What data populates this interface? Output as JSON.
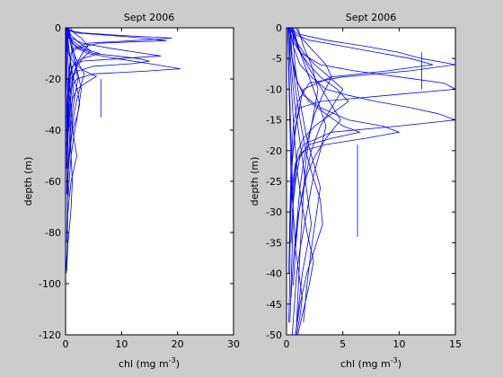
{
  "figure": {
    "background": "#cccccc"
  },
  "chart_data": [
    {
      "type": "line",
      "title": "Sept 2006",
      "xlabel": "chl (mg m",
      "xlabel_sup": "-3",
      "xlabel_close": ")",
      "ylabel": "depth (m)",
      "xlim": [
        0,
        30
      ],
      "ylim": [
        -120,
        0
      ],
      "xticks": [
        0,
        10,
        20,
        30
      ],
      "yticks": [
        0,
        -20,
        -40,
        -60,
        -80,
        -100,
        -120
      ],
      "grid": false,
      "line_color": "#0000ff",
      "series": [
        {
          "x": [
            0.2,
            0.5,
            2.0,
            8.0,
            14.0,
            18.0,
            6.0,
            2.0,
            1.0,
            0.8,
            0.6,
            0.5,
            0.4,
            0.3,
            0.3,
            0.2,
            0.2,
            0.2
          ],
          "y": [
            0,
            -1,
            -2,
            -3,
            -4,
            -5,
            -6,
            -8,
            -10,
            -15,
            -20,
            -25,
            -30,
            -35,
            -40,
            -45,
            -50,
            -55
          ]
        },
        {
          "x": [
            0.3,
            0.8,
            3.0,
            10.0,
            19.0,
            12.0,
            4.0,
            1.5,
            1.0,
            0.7,
            0.5,
            0.4,
            0.3,
            0.2
          ],
          "y": [
            0,
            -1,
            -2,
            -3,
            -4,
            -5,
            -6,
            -8,
            -10,
            -15,
            -20,
            -25,
            -30,
            -35
          ]
        },
        {
          "x": [
            0.2,
            0.4,
            1.0,
            3.0,
            8.0,
            14.0,
            17.0,
            10.0,
            3.0,
            1.2,
            0.8,
            0.5,
            0.4,
            0.3,
            0.3,
            0.2
          ],
          "y": [
            0,
            -2,
            -4,
            -6,
            -8,
            -10,
            -11,
            -12,
            -13,
            -15,
            -18,
            -22,
            -28,
            -35,
            -42,
            -50
          ]
        },
        {
          "x": [
            0.2,
            0.3,
            0.6,
            1.2,
            2.5,
            5.0,
            9.0,
            13.0,
            15.0,
            12.0,
            5.0,
            2.0,
            0.9,
            0.6,
            0.4,
            0.3
          ],
          "y": [
            0,
            -2,
            -4,
            -6,
            -8,
            -10,
            -11,
            -12,
            -13,
            -14,
            -15,
            -17,
            -20,
            -25,
            -32,
            -40
          ]
        },
        {
          "x": [
            0.3,
            0.5,
            1.0,
            2.0,
            4.0,
            9.0,
            15.0,
            20.5,
            14.0,
            5.0,
            2.0,
            1.0,
            0.7,
            0.5,
            0.4,
            0.3
          ],
          "y": [
            0,
            -2,
            -5,
            -8,
            -10,
            -12,
            -14,
            -16,
            -17,
            -18,
            -20,
            -23,
            -28,
            -35,
            -45,
            -55
          ]
        },
        {
          "x": [
            6.3,
            6.3,
            6.3,
            6.3
          ],
          "y": [
            -20,
            -25,
            -30,
            -35
          ]
        },
        {
          "x": [
            0.2,
            0.4,
            1.2,
            3.0,
            6.0,
            3.0,
            1.5,
            1.0,
            0.8,
            0.6,
            0.5,
            0.4,
            0.3,
            0.3,
            0.2
          ],
          "y": [
            0,
            -2,
            -5,
            -8,
            -10,
            -12,
            -14,
            -17,
            -20,
            -25,
            -30,
            -38,
            -46,
            -55,
            -65
          ]
        },
        {
          "x": [
            0.4,
            1.0,
            2.5,
            4.5,
            3.0,
            2.0,
            1.5,
            1.0,
            0.7,
            0.5,
            0.3,
            0.2
          ],
          "y": [
            0,
            -3,
            -6,
            -9,
            -12,
            -15,
            -18,
            -22,
            -28,
            -35,
            -45,
            -55
          ]
        },
        {
          "x": [
            0.2,
            0.3,
            0.5,
            1.5,
            3.5,
            5.5,
            4.0,
            2.0,
            1.2,
            0.8,
            0.5,
            0.3
          ],
          "y": [
            0,
            -5,
            -10,
            -14,
            -17,
            -19,
            -21,
            -24,
            -28,
            -33,
            -40,
            -48
          ]
        },
        {
          "x": [
            0.5,
            0.8,
            1.2,
            1.8,
            2.2,
            1.8,
            1.4,
            1.0,
            0.7,
            0.5,
            0.3
          ],
          "y": [
            0,
            -5,
            -10,
            -15,
            -20,
            -25,
            -30,
            -38,
            -45,
            -55,
            -65
          ]
        },
        {
          "x": [
            0.3,
            0.4,
            0.7,
            1.0,
            1.5,
            2.2,
            2.5,
            2.0,
            1.2,
            0.8,
            0.5,
            0.3
          ],
          "y": [
            0,
            -5,
            -10,
            -15,
            -20,
            -25,
            -30,
            -35,
            -40,
            -48,
            -55,
            -62
          ]
        },
        {
          "x": [
            0.2,
            0.3,
            0.5,
            0.7,
            0.9,
            1.2,
            1.6,
            2.0,
            1.5,
            1.0,
            0.6,
            0.3
          ],
          "y": [
            0,
            -8,
            -15,
            -22,
            -30,
            -38,
            -45,
            -50,
            -55,
            -60,
            -68,
            -75
          ]
        },
        {
          "x": [
            0.1,
            0.2,
            0.3,
            0.5,
            0.8,
            1.0,
            1.2,
            1.0,
            0.7,
            0.4,
            0.2
          ],
          "y": [
            0,
            -10,
            -20,
            -30,
            -40,
            -50,
            -60,
            -70,
            -78,
            -85,
            -95
          ]
        },
        {
          "x": [
            0.1,
            0.1,
            0.2,
            0.2,
            0.3,
            0.4,
            0.3,
            0.2,
            0.1
          ],
          "y": [
            0,
            -15,
            -30,
            -45,
            -60,
            -75,
            -85,
            -90,
            -96
          ]
        },
        {
          "x": [
            0.6,
            0.9,
            1.3,
            1.7,
            2.0,
            2.4,
            2.8,
            2.4,
            2.0,
            1.5,
            1.0,
            0.7,
            0.5
          ],
          "y": [
            0,
            -4,
            -8,
            -12,
            -16,
            -20,
            -24,
            -30,
            -36,
            -42,
            -50,
            -58,
            -66
          ]
        },
        {
          "x": [
            0.4,
            0.6,
            0.9,
            1.3,
            1.9,
            2.6,
            3.3,
            2.8,
            2.0,
            1.4,
            0.9,
            0.5,
            0.3
          ],
          "y": [
            0,
            -3,
            -6,
            -9,
            -12,
            -15,
            -18,
            -22,
            -28,
            -35,
            -45,
            -55,
            -70
          ]
        },
        {
          "x": [
            0.3,
            0.5,
            0.8,
            1.1,
            1.4,
            1.1,
            0.9,
            0.7,
            0.5,
            0.4,
            0.3,
            0.2
          ],
          "y": [
            0,
            -6,
            -12,
            -18,
            -24,
            -30,
            -36,
            -44,
            -52,
            -60,
            -72,
            -84
          ]
        },
        {
          "x": [
            0.8,
            1.5,
            2.8,
            4.0,
            3.0,
            2.2,
            1.6,
            1.2,
            0.9,
            0.6,
            0.4
          ],
          "y": [
            0,
            -2,
            -4,
            -7,
            -10,
            -13,
            -17,
            -22,
            -28,
            -36,
            -46
          ]
        }
      ]
    },
    {
      "type": "line",
      "title": "Sept 2006",
      "xlabel": "chl (mg m",
      "xlabel_sup": "-3",
      "xlabel_close": ")",
      "ylabel": "depth (m)",
      "xlim": [
        0,
        15
      ],
      "ylim": [
        -50,
        0
      ],
      "xticks": [
        0,
        5,
        10,
        15
      ],
      "yticks": [
        0,
        -5,
        -10,
        -15,
        -20,
        -25,
        -30,
        -35,
        -40,
        -45,
        -50
      ],
      "grid": false,
      "line_color": "#0000ff",
      "series": [
        {
          "x": [
            0.2,
            0.6,
            2.0,
            5.0,
            8.0,
            11.0,
            13.0,
            9.0,
            4.0,
            1.5,
            1.0,
            0.7,
            0.5,
            0.4,
            0.3,
            0.3,
            0.2
          ],
          "y": [
            0,
            -1,
            -2,
            -3,
            -4,
            -5,
            -6,
            -7,
            -8,
            -10,
            -14,
            -18,
            -22,
            -27,
            -32,
            -40,
            -48
          ]
        },
        {
          "x": [
            0.3,
            1.0,
            3.5,
            7.0,
            10.0,
            12.0,
            15.0,
            11.0,
            5.0,
            2.0,
            1.0,
            0.6,
            0.4,
            0.3,
            0.2
          ],
          "y": [
            0,
            -1,
            -2,
            -3,
            -4,
            -5,
            -6,
            -7,
            -8,
            -9,
            -12,
            -16,
            -22,
            -30,
            -40
          ]
        },
        {
          "x": [
            0.2,
            0.5,
            1.2,
            3.0,
            6.0,
            10.0,
            14.0,
            15.0,
            9.0,
            3.0,
            1.2,
            0.8,
            0.5,
            0.4,
            0.3
          ],
          "y": [
            0,
            -2,
            -4,
            -6,
            -7,
            -8,
            -9,
            -10,
            -11,
            -12,
            -13,
            -16,
            -21,
            -28,
            -36
          ]
        },
        {
          "x": [
            12.0,
            12.0,
            12.0,
            12.0
          ],
          "y": [
            -4,
            -6,
            -8,
            -10
          ]
        },
        {
          "x": [
            0.3,
            0.6,
            1.2,
            2.2,
            3.5,
            5.5,
            8.0,
            11.0,
            13.5,
            15.0,
            10.0,
            4.0,
            1.5,
            0.9,
            0.6,
            0.4
          ],
          "y": [
            0,
            -3,
            -6,
            -8,
            -10,
            -11,
            -12,
            -13,
            -14,
            -15,
            -16,
            -17,
            -19,
            -22,
            -28,
            -35
          ]
        },
        {
          "x": [
            0.2,
            0.4,
            0.8,
            1.5,
            3.0,
            5.5,
            8.5,
            10.0,
            7.0,
            3.5,
            1.5,
            0.8,
            0.5,
            0.3
          ],
          "y": [
            0,
            -4,
            -8,
            -11,
            -13,
            -15,
            -16,
            -17,
            -18,
            -19,
            -20,
            -22,
            -26,
            -32
          ]
        },
        {
          "x": [
            0.3,
            0.5,
            1.0,
            2.0,
            3.5,
            5.0,
            6.5,
            4.0,
            2.0,
            1.2,
            0.8,
            0.5
          ],
          "y": [
            0,
            -5,
            -9,
            -12,
            -14,
            -16,
            -17,
            -18,
            -19,
            -21,
            -25,
            -30
          ]
        },
        {
          "x": [
            6.3,
            6.3,
            6.3,
            6.3,
            6.3
          ],
          "y": [
            -19,
            -22,
            -26,
            -30,
            -34
          ]
        },
        {
          "x": [
            0.4,
            0.7,
            1.2,
            2.0,
            3.0,
            4.5,
            5.5,
            4.0,
            2.5,
            1.5,
            1.0,
            0.7,
            0.5
          ],
          "y": [
            0,
            -2,
            -4,
            -6,
            -8,
            -10,
            -12,
            -14,
            -16,
            -18,
            -20,
            -24,
            -28
          ]
        },
        {
          "x": [
            0.5,
            1.0,
            1.8,
            2.8,
            3.8,
            4.8,
            3.5,
            2.5,
            1.8,
            1.3,
            0.9,
            0.6,
            0.4
          ],
          "y": [
            0,
            -3,
            -6,
            -9,
            -12,
            -15,
            -18,
            -21,
            -24,
            -28,
            -32,
            -38,
            -44
          ]
        },
        {
          "x": [
            0.6,
            1.2,
            2.0,
            2.8,
            3.5,
            3.0,
            2.4,
            2.0,
            1.6,
            1.2,
            0.9,
            0.7,
            0.5
          ],
          "y": [
            0,
            -4,
            -8,
            -12,
            -16,
            -20,
            -24,
            -28,
            -32,
            -36,
            -40,
            -45,
            -50
          ]
        },
        {
          "x": [
            0.3,
            0.5,
            0.8,
            1.2,
            1.7,
            2.3,
            3.0,
            3.2,
            2.5,
            1.8,
            1.2,
            0.8
          ],
          "y": [
            0,
            -5,
            -10,
            -15,
            -20,
            -24,
            -28,
            -32,
            -36,
            -40,
            -45,
            -50
          ]
        },
        {
          "x": [
            0.2,
            0.3,
            0.5,
            0.7,
            1.0,
            1.4,
            1.9,
            2.4,
            2.0,
            1.5,
            1.0
          ],
          "y": [
            0,
            -6,
            -12,
            -18,
            -24,
            -29,
            -34,
            -38,
            -42,
            -46,
            -50
          ]
        },
        {
          "x": [
            0.1,
            0.2,
            0.3,
            0.4,
            0.6,
            0.8,
            1.1,
            1.4,
            1.2,
            0.9
          ],
          "y": [
            0,
            -8,
            -16,
            -24,
            -30,
            -36,
            -40,
            -44,
            -47,
            -50
          ]
        },
        {
          "x": [
            0.8,
            1.5,
            2.5,
            3.5,
            4.0,
            3.2,
            2.5,
            1.9,
            1.5,
            1.2,
            1.0,
            0.8
          ],
          "y": [
            0,
            -2,
            -4,
            -6,
            -8,
            -11,
            -14,
            -18,
            -22,
            -26,
            -30,
            -35
          ]
        },
        {
          "x": [
            0.4,
            0.8,
            1.5,
            2.5,
            3.8,
            5.0,
            4.0,
            3.0,
            2.2,
            1.6,
            1.1,
            0.8,
            0.6
          ],
          "y": [
            0,
            -2,
            -4,
            -6,
            -8,
            -10,
            -13,
            -16,
            -20,
            -25,
            -30,
            -36,
            -42
          ]
        },
        {
          "x": [
            0.2,
            0.3,
            0.5,
            0.7,
            1.0,
            1.3,
            1.6,
            1.9,
            2.2,
            1.8,
            1.4,
            1.1,
            0.8
          ],
          "y": [
            0,
            -4,
            -8,
            -12,
            -16,
            -20,
            -24,
            -28,
            -32,
            -36,
            -40,
            -45,
            -50
          ]
        },
        {
          "x": [
            0.1,
            0.2,
            0.3,
            0.4,
            0.5,
            0.6,
            0.5,
            0.4,
            0.3
          ],
          "y": [
            0,
            -6,
            -12,
            -18,
            -24,
            -30,
            -36,
            -42,
            -48
          ]
        },
        {
          "x": [
            1.0,
            1.5,
            2.2,
            2.8,
            2.4,
            2.0,
            1.7,
            1.5,
            1.3,
            1.1,
            0.9
          ],
          "y": [
            0,
            -3,
            -6,
            -10,
            -14,
            -18,
            -22,
            -27,
            -33,
            -40,
            -48
          ]
        },
        {
          "x": [
            0.5,
            0.7,
            1.0,
            1.4,
            1.8,
            2.4,
            3.0,
            2.6,
            2.2,
            1.8,
            1.5
          ],
          "y": [
            0,
            -5,
            -10,
            -14,
            -18,
            -22,
            -26,
            -31,
            -36,
            -42,
            -48
          ]
        }
      ]
    }
  ]
}
